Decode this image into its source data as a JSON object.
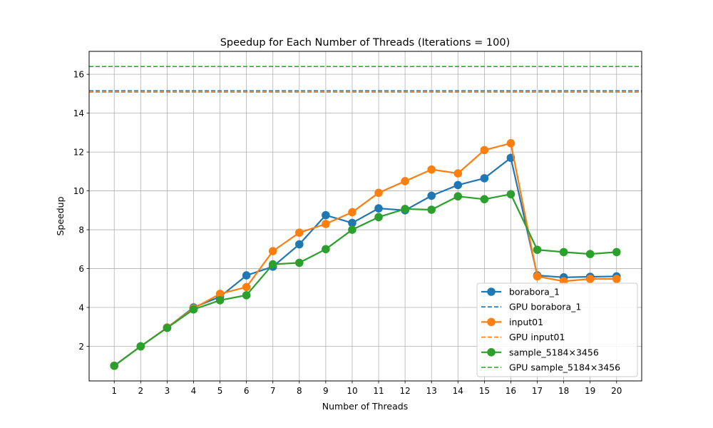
{
  "chart_data": {
    "type": "line",
    "title": "Speedup for Each Number of Threads (Iterations = 100)",
    "xlabel": "Number of Threads",
    "ylabel": "Speedup",
    "x": [
      1,
      2,
      3,
      4,
      5,
      6,
      7,
      8,
      9,
      10,
      11,
      12,
      13,
      14,
      15,
      16,
      17,
      18,
      19,
      20
    ],
    "xlim": [
      0.05,
      20.95
    ],
    "ylim": [
      0.22,
      17.18
    ],
    "yticks": [
      2,
      4,
      6,
      8,
      10,
      12,
      14,
      16
    ],
    "grid": true,
    "legend_position": "lower-right",
    "series": [
      {
        "name": "borabora_1",
        "color": "#1f77b4",
        "values": [
          1.0,
          2.0,
          2.96,
          4.0,
          4.55,
          5.65,
          6.1,
          7.25,
          8.75,
          8.35,
          9.1,
          9.0,
          9.75,
          10.3,
          10.65,
          11.7,
          5.65,
          5.55,
          5.58,
          5.6
        ]
      },
      {
        "name": "input01",
        "color": "#ff7f0e",
        "values": [
          1.0,
          2.0,
          2.97,
          3.95,
          4.7,
          5.05,
          6.9,
          7.85,
          8.3,
          8.9,
          9.9,
          10.5,
          11.1,
          10.9,
          12.1,
          12.45,
          5.6,
          5.35,
          5.47,
          5.47
        ]
      },
      {
        "name": "sample_5184×3456",
        "color": "#2ca02c",
        "values": [
          1.0,
          2.0,
          2.95,
          3.9,
          4.37,
          4.63,
          6.22,
          6.3,
          7.0,
          8.0,
          8.65,
          9.07,
          9.03,
          9.72,
          9.57,
          9.83,
          6.97,
          6.85,
          6.75,
          6.85
        ]
      }
    ],
    "gpu_lines": [
      {
        "name": "GPU borabora_1",
        "color": "#1f77b4",
        "value": 15.15
      },
      {
        "name": "GPU input01",
        "color": "#ff7f0e",
        "value": 15.08
      },
      {
        "name": "GPU sample_5184×3456",
        "color": "#2ca02c",
        "value": 16.4
      }
    ],
    "legend": [
      "borabora_1",
      "GPU borabora_1",
      "input01",
      "GPU input01",
      "sample_5184×3456",
      "GPU sample_5184×3456"
    ]
  }
}
